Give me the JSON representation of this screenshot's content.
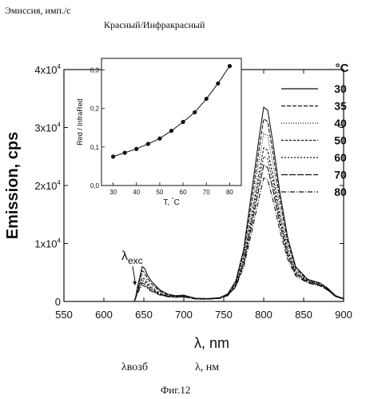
{
  "captions": {
    "top_left": "Эмиссия, имп./с",
    "inset_note": "Красный/Инфракрасный",
    "lambda_vozb": "λвозб",
    "lambda_nm": "λ, нм",
    "figure": "Фиг.12"
  },
  "colors": {
    "ink": "#111111",
    "background": "#ffffff"
  },
  "chart_data": [
    {
      "type": "line",
      "title": "",
      "xlabel": "λ, nm",
      "ylabel": "Emission, cps",
      "xlim": [
        550,
        900
      ],
      "ylim": [
        0,
        40000
      ],
      "x_ticks": [
        "550",
        "600",
        "650",
        "700",
        "750",
        "800",
        "850",
        "900"
      ],
      "y_ticks": [
        "0",
        "1x10^4",
        "2x10^4",
        "3x10^4",
        "4x10^4"
      ],
      "legend": {
        "title": "°C",
        "position": "right",
        "entries": [
          "30",
          "35",
          "40",
          "50",
          "60",
          "70",
          "80"
        ]
      },
      "annotation": {
        "label": "λexc",
        "x": 640
      },
      "series": [
        {
          "name": "30",
          "dash": "solid",
          "points": [
            [
              550,
              0
            ],
            [
              600,
              0
            ],
            [
              630,
              0
            ],
            [
              638,
              0
            ],
            [
              640,
              900
            ],
            [
              642,
              2500
            ],
            [
              645,
              4200
            ],
            [
              648,
              6000
            ],
            [
              651,
              5700
            ],
            [
              655,
              4400
            ],
            [
              660,
              3400
            ],
            [
              670,
              2000
            ],
            [
              680,
              1250
            ],
            [
              690,
              1000
            ],
            [
              700,
              1100
            ],
            [
              705,
              900
            ],
            [
              715,
              550
            ],
            [
              730,
              500
            ],
            [
              745,
              650
            ],
            [
              755,
              1300
            ],
            [
              765,
              3500
            ],
            [
              775,
              9000
            ],
            [
              785,
              19000
            ],
            [
              795,
              29000
            ],
            [
              800,
              33500
            ],
            [
              805,
              33000
            ],
            [
              812,
              27000
            ],
            [
              820,
              19000
            ],
            [
              830,
              11000
            ],
            [
              840,
              6000
            ],
            [
              855,
              3800
            ],
            [
              870,
              3200
            ],
            [
              880,
              2300
            ],
            [
              890,
              1000
            ],
            [
              900,
              500
            ]
          ]
        },
        {
          "name": "35",
          "dash": "5,2",
          "points": [
            [
              550,
              0
            ],
            [
              600,
              0
            ],
            [
              630,
              0
            ],
            [
              638,
              0
            ],
            [
              640,
              850
            ],
            [
              642,
              2300
            ],
            [
              645,
              3900
            ],
            [
              648,
              5300
            ],
            [
              651,
              5000
            ],
            [
              655,
              3900
            ],
            [
              660,
              3000
            ],
            [
              670,
              1800
            ],
            [
              680,
              1150
            ],
            [
              690,
              950
            ],
            [
              700,
              1000
            ],
            [
              705,
              850
            ],
            [
              715,
              520
            ],
            [
              730,
              480
            ],
            [
              745,
              620
            ],
            [
              755,
              1250
            ],
            [
              765,
              3300
            ],
            [
              775,
              8400
            ],
            [
              785,
              17500
            ],
            [
              795,
              27000
            ],
            [
              800,
              31500
            ],
            [
              805,
              31000
            ],
            [
              812,
              25300
            ],
            [
              820,
              17800
            ],
            [
              830,
              10300
            ],
            [
              840,
              5700
            ],
            [
              855,
              3700
            ],
            [
              870,
              3100
            ],
            [
              880,
              2200
            ],
            [
              890,
              950
            ],
            [
              900,
              480
            ]
          ]
        },
        {
          "name": "40",
          "dash": "1,2",
          "points": [
            [
              550,
              0
            ],
            [
              600,
              0
            ],
            [
              630,
              0
            ],
            [
              638,
              0
            ],
            [
              640,
              800
            ],
            [
              642,
              2100
            ],
            [
              645,
              3500
            ],
            [
              648,
              4700
            ],
            [
              651,
              4400
            ],
            [
              655,
              3400
            ],
            [
              660,
              2600
            ],
            [
              670,
              1600
            ],
            [
              680,
              1050
            ],
            [
              690,
              900
            ],
            [
              700,
              950
            ],
            [
              705,
              800
            ],
            [
              715,
              500
            ],
            [
              730,
              460
            ],
            [
              745,
              600
            ],
            [
              755,
              1200
            ],
            [
              765,
              3100
            ],
            [
              775,
              7900
            ],
            [
              785,
              16200
            ],
            [
              795,
              25000
            ],
            [
              800,
              29000
            ],
            [
              805,
              28600
            ],
            [
              812,
              23400
            ],
            [
              820,
              16500
            ],
            [
              830,
              9600
            ],
            [
              840,
              5400
            ],
            [
              855,
              3600
            ],
            [
              870,
              3000
            ],
            [
              880,
              2150
            ],
            [
              890,
              920
            ],
            [
              900,
              460
            ]
          ]
        },
        {
          "name": "50",
          "dash": "3,2",
          "points": [
            [
              550,
              0
            ],
            [
              600,
              0
            ],
            [
              630,
              0
            ],
            [
              638,
              0
            ],
            [
              640,
              750
            ],
            [
              642,
              1900
            ],
            [
              645,
              3100
            ],
            [
              648,
              4100
            ],
            [
              651,
              3800
            ],
            [
              655,
              3000
            ],
            [
              660,
              2300
            ],
            [
              670,
              1400
            ],
            [
              680,
              950
            ],
            [
              690,
              850
            ],
            [
              700,
              900
            ],
            [
              705,
              750
            ],
            [
              715,
              480
            ],
            [
              730,
              440
            ],
            [
              745,
              580
            ],
            [
              755,
              1150
            ],
            [
              765,
              2900
            ],
            [
              775,
              7300
            ],
            [
              785,
              14800
            ],
            [
              795,
              22800
            ],
            [
              800,
              26500
            ],
            [
              805,
              26100
            ],
            [
              812,
              21400
            ],
            [
              820,
              15100
            ],
            [
              830,
              8800
            ],
            [
              840,
              5100
            ],
            [
              855,
              3500
            ],
            [
              870,
              2900
            ],
            [
              880,
              2100
            ],
            [
              890,
              900
            ],
            [
              900,
              450
            ]
          ]
        },
        {
          "name": "60",
          "dash": "2,2",
          "points": [
            [
              550,
              0
            ],
            [
              600,
              0
            ],
            [
              630,
              0
            ],
            [
              638,
              0
            ],
            [
              640,
              700
            ],
            [
              642,
              1700
            ],
            [
              645,
              2800
            ],
            [
              648,
              3600
            ],
            [
              651,
              3400
            ],
            [
              655,
              2700
            ],
            [
              660,
              2100
            ],
            [
              670,
              1300
            ],
            [
              680,
              900
            ],
            [
              690,
              800
            ],
            [
              700,
              850
            ],
            [
              705,
              700
            ],
            [
              715,
              460
            ],
            [
              730,
              420
            ],
            [
              745,
              560
            ],
            [
              755,
              1100
            ],
            [
              765,
              2800
            ],
            [
              775,
              6900
            ],
            [
              785,
              14000
            ],
            [
              795,
              21500
            ],
            [
              800,
              25000
            ],
            [
              805,
              24600
            ],
            [
              812,
              20200
            ],
            [
              820,
              14300
            ],
            [
              830,
              8400
            ],
            [
              840,
              4900
            ],
            [
              855,
              3400
            ],
            [
              870,
              2850
            ],
            [
              880,
              2050
            ],
            [
              890,
              880
            ],
            [
              900,
              440
            ]
          ]
        },
        {
          "name": "70",
          "dash": "8,2",
          "points": [
            [
              550,
              0
            ],
            [
              600,
              0
            ],
            [
              630,
              0
            ],
            [
              638,
              0
            ],
            [
              640,
              650
            ],
            [
              642,
              1550
            ],
            [
              645,
              2500
            ],
            [
              648,
              3200
            ],
            [
              651,
              3000
            ],
            [
              655,
              2400
            ],
            [
              660,
              1900
            ],
            [
              670,
              1200
            ],
            [
              680,
              850
            ],
            [
              690,
              760
            ],
            [
              700,
              800
            ],
            [
              705,
              680
            ],
            [
              715,
              440
            ],
            [
              730,
              400
            ],
            [
              745,
              540
            ],
            [
              755,
              1050
            ],
            [
              765,
              2650
            ],
            [
              775,
              6500
            ],
            [
              785,
              13200
            ],
            [
              795,
              20200
            ],
            [
              800,
              23500
            ],
            [
              805,
              23100
            ],
            [
              812,
              19000
            ],
            [
              820,
              13500
            ],
            [
              830,
              7900
            ],
            [
              840,
              4700
            ],
            [
              855,
              3300
            ],
            [
              870,
              2800
            ],
            [
              880,
              2000
            ],
            [
              890,
              860
            ],
            [
              900,
              430
            ]
          ]
        },
        {
          "name": "80",
          "dash": "6,2,1,2",
          "points": [
            [
              550,
              0
            ],
            [
              600,
              0
            ],
            [
              630,
              0
            ],
            [
              638,
              0
            ],
            [
              640,
              600
            ],
            [
              642,
              1400
            ],
            [
              645,
              2200
            ],
            [
              648,
              2800
            ],
            [
              651,
              2650
            ],
            [
              655,
              2150
            ],
            [
              660,
              1700
            ],
            [
              670,
              1100
            ],
            [
              680,
              800
            ],
            [
              690,
              720
            ],
            [
              700,
              760
            ],
            [
              705,
              650
            ],
            [
              715,
              420
            ],
            [
              730,
              380
            ],
            [
              745,
              520
            ],
            [
              755,
              1000
            ],
            [
              765,
              2500
            ],
            [
              775,
              6000
            ],
            [
              785,
              12000
            ],
            [
              795,
              18400
            ],
            [
              800,
              21300
            ],
            [
              805,
              21000
            ],
            [
              812,
              17300
            ],
            [
              820,
              12300
            ],
            [
              830,
              7300
            ],
            [
              840,
              4400
            ],
            [
              855,
              3200
            ],
            [
              870,
              2700
            ],
            [
              880,
              1950
            ],
            [
              890,
              840
            ],
            [
              900,
              420
            ]
          ]
        }
      ]
    },
    {
      "type": "scatter",
      "title": "",
      "xlabel": "T, °C",
      "ylabel": "Red / InfraRed",
      "xlim": [
        25,
        85
      ],
      "ylim": [
        0.0,
        0.33
      ],
      "x_ticks": [
        "30",
        "40",
        "50",
        "60",
        "70",
        "80"
      ],
      "y_ticks": [
        "0,0",
        "0,1",
        "0,2",
        "0,3"
      ],
      "connected": true,
      "x": [
        30,
        35,
        40,
        45,
        50,
        55,
        60,
        65,
        70,
        75,
        80
      ],
      "y": [
        0.075,
        0.085,
        0.095,
        0.108,
        0.122,
        0.142,
        0.165,
        0.19,
        0.225,
        0.265,
        0.31
      ]
    }
  ]
}
